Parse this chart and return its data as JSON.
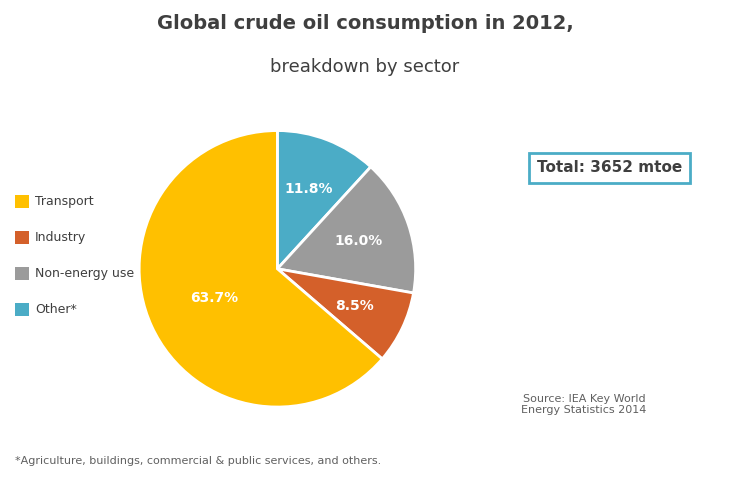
{
  "title_line1": "Global crude oil consumption in 2012,",
  "title_line2": "breakdown by sector",
  "sectors": [
    "Transport",
    "Industry",
    "Non-energy use",
    "Other*"
  ],
  "values": [
    63.7,
    8.5,
    16.0,
    11.8
  ],
  "colors": [
    "#FFC000",
    "#D4602A",
    "#9B9B9B",
    "#4BACC6"
  ],
  "labels": [
    "63.7%",
    "8.5%",
    "16.0%",
    "11.8%"
  ],
  "legend_colors": [
    "#FFC000",
    "#D4602A",
    "#9B9B9B",
    "#4BACC6"
  ],
  "total_label": "Total: 3652 mtoe",
  "source_text": "Source: IEA Key World\nEnergy Statistics 2014",
  "footnote": "*Agriculture, buildings, commercial & public services, and others.",
  "background_color": "#FFFFFF"
}
